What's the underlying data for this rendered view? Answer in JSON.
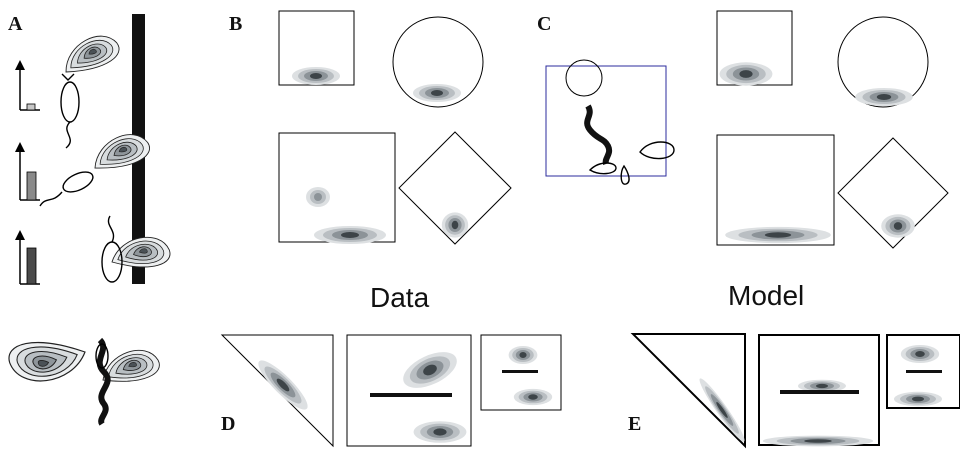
{
  "panels": {
    "a": "A",
    "b": "B",
    "c": "C",
    "d": "D",
    "e": "E"
  },
  "captions": {
    "data": "Data",
    "model": "Model"
  },
  "colors": {
    "frame": "#000000",
    "arena_outline": "#2b2b9c",
    "density_light": "#d5d8db",
    "density_mid": "#9aa0a5",
    "density_dark": "#444b50",
    "density_core": "#1d2326",
    "bar_light": "#c8c8c8",
    "bar_mid": "#8a8a8a",
    "bar_dark": "#4a4a4a"
  },
  "icons": [
    "wall-bar",
    "worm-body",
    "head-sensing-contour",
    "arrow-up",
    "shape-square",
    "shape-circle",
    "shape-diamond",
    "shape-triangle"
  ]
}
